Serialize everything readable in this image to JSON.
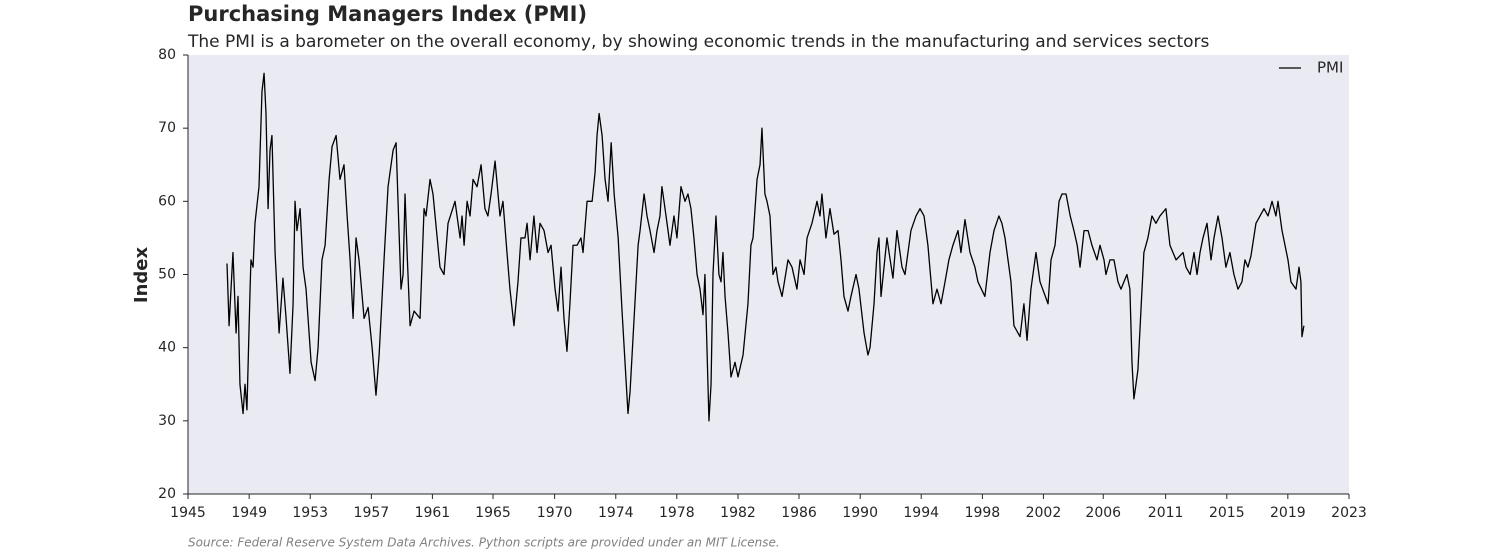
{
  "chart_data": {
    "type": "line",
    "title": "Purchasing Managers Index (PMI)",
    "subtitle": "The PMI is a barometer on the overall economy, by showing economic trends in the manufacturing and services sectors",
    "source": "Source: Federal Reserve System Data Archives. Python scripts are provided under an MIT License.",
    "ylabel": "Index",
    "legend": "upper right",
    "xlim": [
      1945,
      2023
    ],
    "ylim": [
      20,
      80
    ],
    "xticks": [
      1945,
      {
        "value": 1949.11,
        "label": "1949"
      },
      {
        "value": 1953.21,
        "label": "1953"
      },
      {
        "value": 1957.32,
        "label": "1957"
      },
      {
        "value": 1961.42,
        "label": "1961"
      },
      {
        "value": 1965.49,
        "label": "1965"
      },
      {
        "value": 1969.63,
        "label": "1970"
      },
      {
        "value": 1973.74,
        "label": "1974"
      },
      {
        "value": 1977.84,
        "label": "1978"
      },
      {
        "value": 1981.95,
        "label": "1982"
      },
      {
        "value": 1986.05,
        "label": "1986"
      },
      {
        "value": 1990.16,
        "label": "1990"
      },
      {
        "value": 1994.26,
        "label": "1994"
      },
      {
        "value": 1998.37,
        "label": "1998"
      },
      {
        "value": 2002.47,
        "label": "2002"
      },
      {
        "value": 2006.49,
        "label": "2006"
      },
      {
        "value": 2010.68,
        "label": "2011"
      },
      {
        "value": 2014.79,
        "label": "2015"
      },
      {
        "value": 2018.89,
        "label": "2019"
      },
      2023
    ],
    "yticks": [
      20,
      30,
      40,
      50,
      60,
      70,
      80
    ],
    "x": [
      1947.62,
      1947.76,
      1948.02,
      1948.23,
      1948.36,
      1948.49,
      1948.7,
      1948.83,
      1948.96,
      1949.17,
      1949.23,
      1949.37,
      1949.5,
      1949.77,
      1949.97,
      1950.11,
      1950.24,
      1950.38,
      1950.51,
      1950.64,
      1950.85,
      1951.12,
      1951.38,
      1951.59,
      1951.85,
      1952.06,
      1952.19,
      1952.32,
      1952.53,
      1952.73,
      1952.93,
      1953.27,
      1953.54,
      1953.74,
      1954.0,
      1954.21,
      1954.48,
      1954.68,
      1954.95,
      1955.21,
      1955.48,
      1955.69,
      1955.89,
      1956.09,
      1956.29,
      1956.49,
      1956.83,
      1957.1,
      1957.37,
      1957.63,
      1957.84,
      1958.17,
      1958.44,
      1958.78,
      1958.98,
      1959.11,
      1959.31,
      1959.45,
      1959.58,
      1959.72,
      1959.92,
      1960.19,
      1960.59,
      1960.86,
      1960.99,
      1961.26,
      1961.46,
      1961.93,
      1962.2,
      1962.47,
      1962.94,
      1963.28,
      1963.41,
      1963.55,
      1963.75,
      1963.95,
      1964.15,
      1964.42,
      1964.69,
      1964.95,
      1965.15,
      1965.36,
      1965.63,
      1965.96,
      1966.16,
      1966.43,
      1966.63,
      1966.9,
      1967.17,
      1967.37,
      1967.64,
      1967.78,
      1967.98,
      1968.24,
      1968.45,
      1968.65,
      1968.92,
      1969.19,
      1969.39,
      1969.66,
      1969.86,
      1970.06,
      1970.26,
      1970.46,
      1970.66,
      1970.87,
      1971.14,
      1971.4,
      1971.54,
      1971.81,
      1972.15,
      1972.35,
      1972.48,
      1972.62,
      1972.82,
      1973.02,
      1973.22,
      1973.43,
      1973.63,
      1973.9,
      1974.16,
      1974.56,
      1974.7,
      1974.97,
      1975.24,
      1975.37,
      1975.64,
      1975.84,
      1976.04,
      1976.31,
      1976.51,
      1976.71,
      1976.84,
      1976.98,
      1977.25,
      1977.38,
      1977.65,
      1977.85,
      1978.12,
      1978.39,
      1978.59,
      1978.79,
      1978.99,
      1979.2,
      1979.4,
      1979.6,
      1979.73,
      1980.0,
      1980.14,
      1980.27,
      1980.47,
      1980.67,
      1980.81,
      1980.94,
      1981.08,
      1981.28,
      1981.48,
      1981.75,
      1981.95,
      1982.29,
      1982.62,
      1982.82,
      1982.96,
      1983.23,
      1983.43,
      1983.56,
      1983.76,
      1983.9,
      1984.1,
      1984.3,
      1984.5,
      1984.64,
      1984.91,
      1985.31,
      1985.58,
      1985.91,
      1986.12,
      1986.39,
      1986.59,
      1986.92,
      1987.26,
      1987.46,
      1987.59,
      1987.86,
      1988.13,
      1988.4,
      1988.67,
      1988.87,
      1989.07,
      1989.34,
      1989.54,
      1989.88,
      1990.08,
      1990.42,
      1990.68,
      1990.82,
      1991.09,
      1991.29,
      1991.42,
      1991.56,
      1991.76,
      1991.96,
      1992.1,
      1992.36,
      1992.63,
      1992.97,
      1993.17,
      1993.37,
      1993.57,
      1993.91,
      1994.18,
      1994.45,
      1994.71,
      1995.05,
      1995.32,
      1995.59,
      1995.86,
      1996.12,
      1996.39,
      1996.73,
      1996.93,
      1997.2,
      1997.54,
      1997.87,
      1998.07,
      1998.54,
      1998.88,
      1999.15,
      1999.48,
      1999.68,
      1999.89,
      2000.09,
      2000.29,
      2000.49,
      2000.9,
      2001.16,
      2001.37,
      2001.63,
      2001.97,
      2002.24,
      2002.78,
      2002.98,
      2003.25,
      2003.52,
      2003.72,
      2003.99,
      2004.27,
      2004.52,
      2004.74,
      2004.93,
      2005.2,
      2005.47,
      2005.73,
      2006.07,
      2006.27,
      2006.54,
      2006.67,
      2006.94,
      2007.21,
      2007.48,
      2007.68,
      2008.08,
      2008.28,
      2008.42,
      2008.55,
      2008.69,
      2008.82,
      2009.02,
      2009.22,
      2009.49,
      2009.76,
      2010.03,
      2010.3,
      2010.7,
      2010.97,
      2011.38,
      2011.85,
      2012.05,
      2012.33,
      2012.59,
      2012.79,
      2012.99,
      2013.19,
      2013.46,
      2013.73,
      2013.93,
      2014.2,
      2014.47,
      2014.73,
      2015.0,
      2015.27,
      2015.54,
      2015.81,
      2016.01,
      2016.21,
      2016.41,
      2016.75,
      2017.29,
      2017.56,
      2017.83,
      2018.09,
      2018.23,
      2018.5,
      2018.7,
      2018.9,
      2019.1,
      2019.44,
      2019.64,
      2019.77,
      2019.84,
      2019.97
    ],
    "series": [
      {
        "name": "PMI",
        "color": "#000000",
        "values": [
          51.5,
          43,
          53,
          42,
          47,
          35,
          31,
          35,
          31.5,
          48,
          52,
          51,
          57,
          62,
          75,
          77.5,
          72,
          59,
          67,
          69,
          53,
          42,
          49.5,
          44,
          36.5,
          46,
          60,
          56,
          59,
          51,
          48,
          38,
          35.5,
          40,
          52,
          54,
          63,
          67.5,
          69,
          63,
          65,
          58,
          52,
          44,
          55,
          52,
          44,
          45.5,
          40,
          33.5,
          39,
          52,
          62,
          67,
          68,
          60,
          48,
          50,
          61,
          53,
          43,
          45,
          44,
          59,
          58,
          63,
          61,
          51,
          50,
          57,
          60,
          55,
          58,
          54,
          60,
          58,
          63,
          62,
          65,
          59,
          58,
          61,
          65.5,
          58,
          60,
          53,
          48,
          43,
          49,
          55,
          55,
          57,
          52,
          58,
          53,
          57,
          56,
          53,
          54,
          48,
          45,
          51,
          44,
          39.5,
          46,
          54,
          54,
          55,
          53,
          60,
          60,
          64,
          69,
          72,
          69,
          63,
          60,
          68,
          61,
          55,
          45,
          31,
          34,
          44,
          54,
          56,
          61,
          58,
          56,
          53,
          56,
          58,
          62,
          60,
          56,
          54,
          58,
          55,
          62,
          60,
          61,
          59,
          55,
          50,
          48,
          44.5,
          50,
          30,
          35,
          50,
          58,
          50,
          49,
          53,
          47,
          42,
          36,
          38,
          36,
          39,
          46,
          54,
          55,
          63,
          65,
          70,
          61,
          60,
          58,
          50,
          51,
          49,
          47,
          52,
          51,
          48,
          52,
          50,
          55,
          57,
          60,
          58,
          61,
          55,
          59,
          55.5,
          56,
          52,
          47,
          45,
          47,
          50,
          48,
          42,
          39,
          40,
          46,
          53,
          55,
          47,
          51,
          55,
          53,
          49.5,
          56,
          51,
          50,
          53,
          56,
          58,
          59,
          58,
          54,
          46,
          48,
          46,
          49,
          52,
          54,
          56,
          53,
          57.5,
          53,
          51,
          49,
          47,
          53,
          56,
          58,
          57,
          55,
          52,
          49,
          43,
          41.5,
          46,
          41,
          48,
          53,
          49,
          46,
          52,
          54,
          60,
          61,
          61,
          58,
          56,
          54,
          51,
          56,
          56,
          54,
          52,
          54,
          52,
          50,
          52,
          52,
          49,
          48,
          50,
          48,
          38,
          33,
          35,
          37,
          45,
          53,
          55,
          58,
          57,
          58,
          59,
          54,
          52,
          53,
          51,
          50,
          53,
          50,
          53,
          55,
          57,
          52,
          55,
          58,
          55,
          51,
          53,
          50,
          48,
          49,
          52,
          51,
          52.5,
          57,
          59,
          58,
          60,
          58,
          60,
          56,
          54,
          52,
          49,
          48,
          51,
          49,
          41.5,
          43
        ]
      }
    ]
  }
}
